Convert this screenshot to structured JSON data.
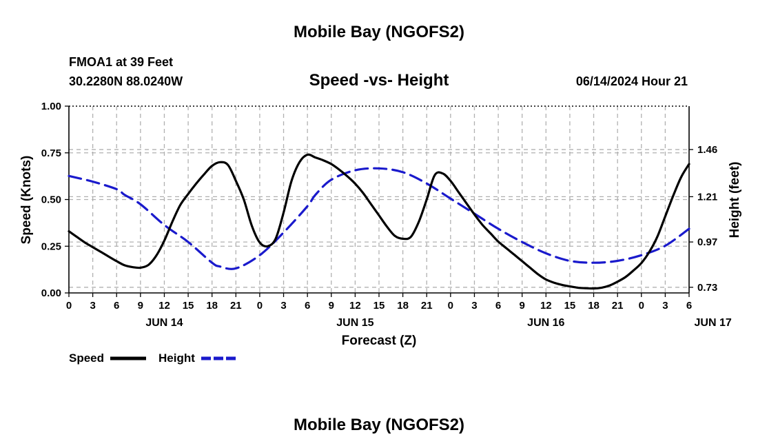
{
  "header": {
    "title": "Mobile Bay (NGOFS2)",
    "station": "FMOA1 at 39 Feet",
    "coords": "30.2280N  88.0240W",
    "subtitle": "Speed -vs- Height",
    "issued": "06/14/2024 Hour 21"
  },
  "footer": {
    "title": "Mobile Bay (NGOFS2)"
  },
  "legend": {
    "speed_label": "Speed",
    "height_label": "Height",
    "speed_color": "#000000",
    "height_color": "#1a1acc"
  },
  "chart_data": {
    "type": "line",
    "title": "Speed -vs- Height",
    "xlabel": "Forecast (Z)",
    "ylabel": "Speed (Knots)",
    "y2label": "Height (feet)",
    "x_hours_from_jun13_21z": [
      0,
      78
    ],
    "x_tick_labels": [
      "0",
      "3",
      "6",
      "9",
      "12",
      "15",
      "18",
      "21",
      "0",
      "3",
      "6",
      "9",
      "12",
      "15",
      "18",
      "21",
      "0",
      "3",
      "6",
      "9",
      "12",
      "15",
      "18",
      "21",
      "0",
      "3",
      "6"
    ],
    "date_labels": [
      {
        "label": "JUN 14",
        "hour": 12
      },
      {
        "label": "JUN 15",
        "hour": 36
      },
      {
        "label": "JUN 16",
        "hour": 60
      },
      {
        "label": "JUN 17",
        "hour": 81
      }
    ],
    "ylim": [
      0,
      1
    ],
    "y_ticks": [
      "0.00",
      "0.25",
      "0.50",
      "0.75",
      "1.00"
    ],
    "y2lim": [
      0.7,
      1.69
    ],
    "y2_ticks": [
      "0.73",
      "0.97",
      "1.21",
      "1.46"
    ],
    "grid": true,
    "series": [
      {
        "name": "Speed",
        "axis": "left",
        "x": [
          0,
          1,
          2,
          3,
          4,
          5,
          6,
          7,
          8,
          9,
          10,
          11,
          12,
          13,
          14,
          15,
          16,
          17,
          18,
          19,
          20,
          21,
          22,
          23,
          24,
          25,
          26,
          27,
          28,
          29,
          30,
          31,
          32,
          33,
          34,
          35,
          36,
          37,
          38,
          39,
          40,
          41,
          42,
          43,
          44,
          45,
          46,
          47,
          48,
          49,
          50,
          51,
          52,
          53,
          54,
          55,
          56,
          57,
          58,
          59,
          60,
          61,
          62,
          63,
          64,
          65,
          66,
          67,
          68,
          69,
          70,
          71,
          72,
          73,
          74,
          75,
          76,
          77,
          78
        ],
        "values": [
          0.33,
          0.3,
          0.27,
          0.245,
          0.22,
          0.195,
          0.17,
          0.148,
          0.138,
          0.135,
          0.15,
          0.2,
          0.28,
          0.38,
          0.47,
          0.53,
          0.585,
          0.635,
          0.68,
          0.7,
          0.685,
          0.6,
          0.5,
          0.36,
          0.27,
          0.25,
          0.29,
          0.43,
          0.6,
          0.7,
          0.74,
          0.725,
          0.71,
          0.69,
          0.66,
          0.625,
          0.585,
          0.535,
          0.475,
          0.415,
          0.355,
          0.305,
          0.29,
          0.3,
          0.38,
          0.5,
          0.63,
          0.64,
          0.6,
          0.54,
          0.48,
          0.42,
          0.365,
          0.32,
          0.275,
          0.24,
          0.205,
          0.17,
          0.135,
          0.1,
          0.072,
          0.055,
          0.043,
          0.035,
          0.028,
          0.025,
          0.024,
          0.028,
          0.04,
          0.06,
          0.085,
          0.12,
          0.16,
          0.22,
          0.3,
          0.41,
          0.52,
          0.62,
          0.69
        ]
      },
      {
        "name": "Height",
        "axis": "right",
        "x": [
          0,
          3,
          6,
          7,
          9,
          12,
          15,
          18,
          19,
          21,
          24,
          27,
          30,
          31,
          33,
          36,
          39,
          42,
          45,
          48,
          51,
          54,
          57,
          60,
          63,
          66,
          69,
          72,
          75,
          78
        ],
        "values": [
          1.32,
          1.29,
          1.25,
          1.22,
          1.17,
          1.06,
          0.97,
          0.86,
          0.84,
          0.83,
          0.9,
          1.02,
          1.16,
          1.22,
          1.3,
          1.35,
          1.36,
          1.34,
          1.28,
          1.2,
          1.12,
          1.04,
          0.97,
          0.91,
          0.87,
          0.86,
          0.87,
          0.9,
          0.95,
          1.04
        ]
      }
    ]
  }
}
